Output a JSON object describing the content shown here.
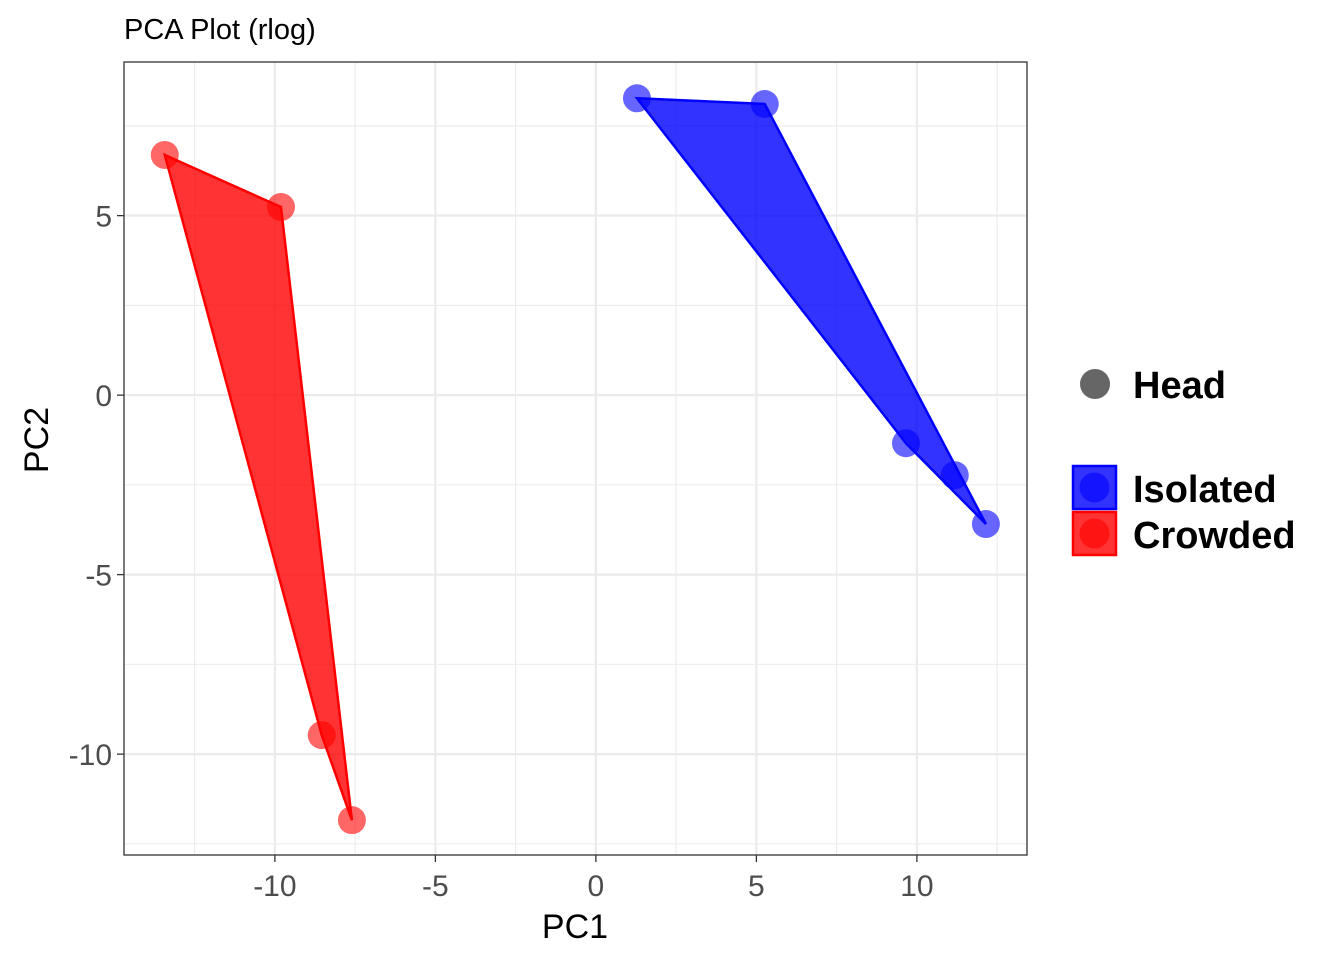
{
  "chart_data": {
    "type": "scatter",
    "title": "PCA Plot (rlog)",
    "xlabel": "PC1",
    "ylabel": "PC2",
    "xlim": [
      -14.7,
      13.43
    ],
    "ylim": [
      -12.81,
      9.28
    ],
    "grid": true,
    "legend_position": "right",
    "x_ticks": [
      -10,
      -5,
      0,
      5,
      10
    ],
    "y_ticks": [
      5,
      0,
      -5,
      -10
    ],
    "x_tick_labels": [
      "-10",
      "-5",
      "0",
      "5",
      "10"
    ],
    "y_tick_labels": [
      "5",
      "0",
      "-5",
      "-10"
    ],
    "shape_legend": {
      "label": "Head",
      "color": "#666666"
    },
    "series": [
      {
        "name": "Isolated",
        "color": "#0000FF",
        "points": [
          [
            1.28,
            8.27
          ],
          [
            5.26,
            8.11
          ],
          [
            9.66,
            -1.34
          ],
          [
            11.18,
            -2.23
          ],
          [
            12.15,
            -3.59
          ]
        ]
      },
      {
        "name": "Crowded",
        "color": "#FF0000",
        "points": [
          [
            -13.43,
            6.69
          ],
          [
            -9.81,
            5.24
          ],
          [
            -8.54,
            -9.47
          ],
          [
            -7.6,
            -11.84
          ]
        ]
      }
    ]
  }
}
